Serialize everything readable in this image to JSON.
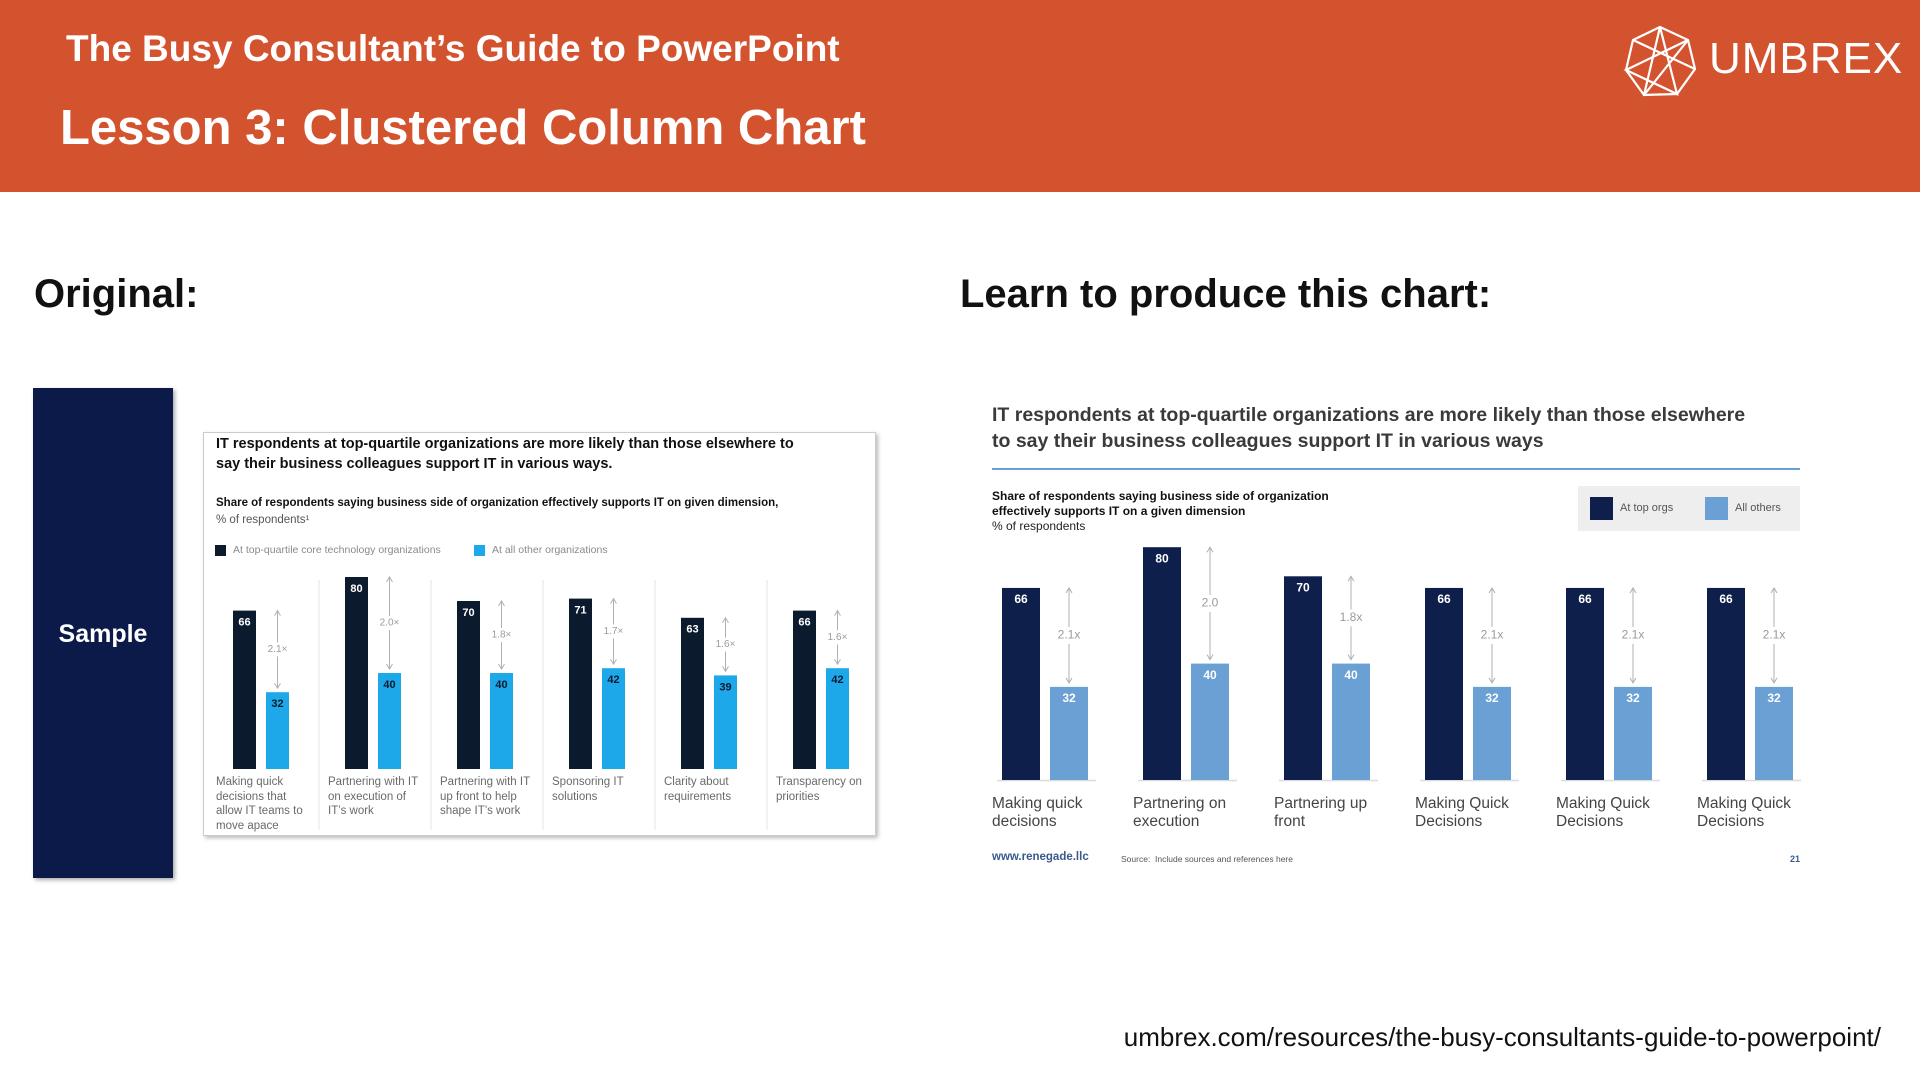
{
  "header": {
    "title": "The Busy Consultant’s Guide to PowerPoint",
    "subtitle": "Lesson 3: Clustered Column Chart",
    "logo": "UMBREX"
  },
  "left_heading": "Original:",
  "right_heading": "Learn to produce this chart:",
  "sample_label": "Sample",
  "footer_url": "umbrex.com/resources/the-busy-consultants-guide-to-powerpoint/",
  "chart_data": [
    {
      "type": "bar",
      "title": "IT respondents at top-quartile organizations are more likely than those elsewhere to say their business colleagues support IT in various ways.",
      "subtitle": "Share of respondents saying business side of organization effectively supports IT on given dimension,",
      "unit_label": "% of respondents¹",
      "categories": [
        "Making quick decisions that allow IT teams to move apace",
        "Partnering with IT on execution of IT’s work",
        "Partnering with IT up front to help shape IT’s work",
        "Sponsoring IT solutions",
        "Clarity about requirements",
        "Transparency on priorities"
      ],
      "series": [
        {
          "name": "At top-quartile core technology organizations",
          "color": "#0c1a2e",
          "values": [
            66,
            80,
            70,
            71,
            63,
            66
          ]
        },
        {
          "name": "At all other organizations",
          "color": "#1da8ea",
          "values": [
            32,
            40,
            40,
            42,
            39,
            42
          ]
        }
      ],
      "annotations": [
        "2.1×",
        "2.0×",
        "1.8×",
        "1.7×",
        "1.6×",
        "1.6×"
      ]
    },
    {
      "type": "bar",
      "title": "IT respondents at top-quartile organizations are more likely than those elsewhere to say their business colleagues support IT in various ways",
      "subtitle": "Share of respondents saying business side of organization effectively supports IT on a given dimension",
      "unit_label": "% of respondents",
      "categories": [
        "Making quick decisions",
        "Partnering on execution",
        "Partnering up front",
        "Making Quick Decisions",
        "Making Quick Decisions",
        "Making Quick Decisions"
      ],
      "series": [
        {
          "name": "At top orgs",
          "color": "#0f1f4b",
          "values": [
            66,
            80,
            70,
            66,
            66,
            66
          ]
        },
        {
          "name": "All others",
          "color": "#6aa0d4",
          "values": [
            32,
            40,
            40,
            32,
            32,
            32
          ]
        }
      ],
      "annotations": [
        "2.1x",
        "2.0",
        "1.8x",
        "2.1x",
        "2.1x",
        "2.1x"
      ],
      "footer": {
        "website": "www.renegade.llc",
        "source": "Source:  Include sources and references here",
        "page_number": 21
      }
    }
  ]
}
